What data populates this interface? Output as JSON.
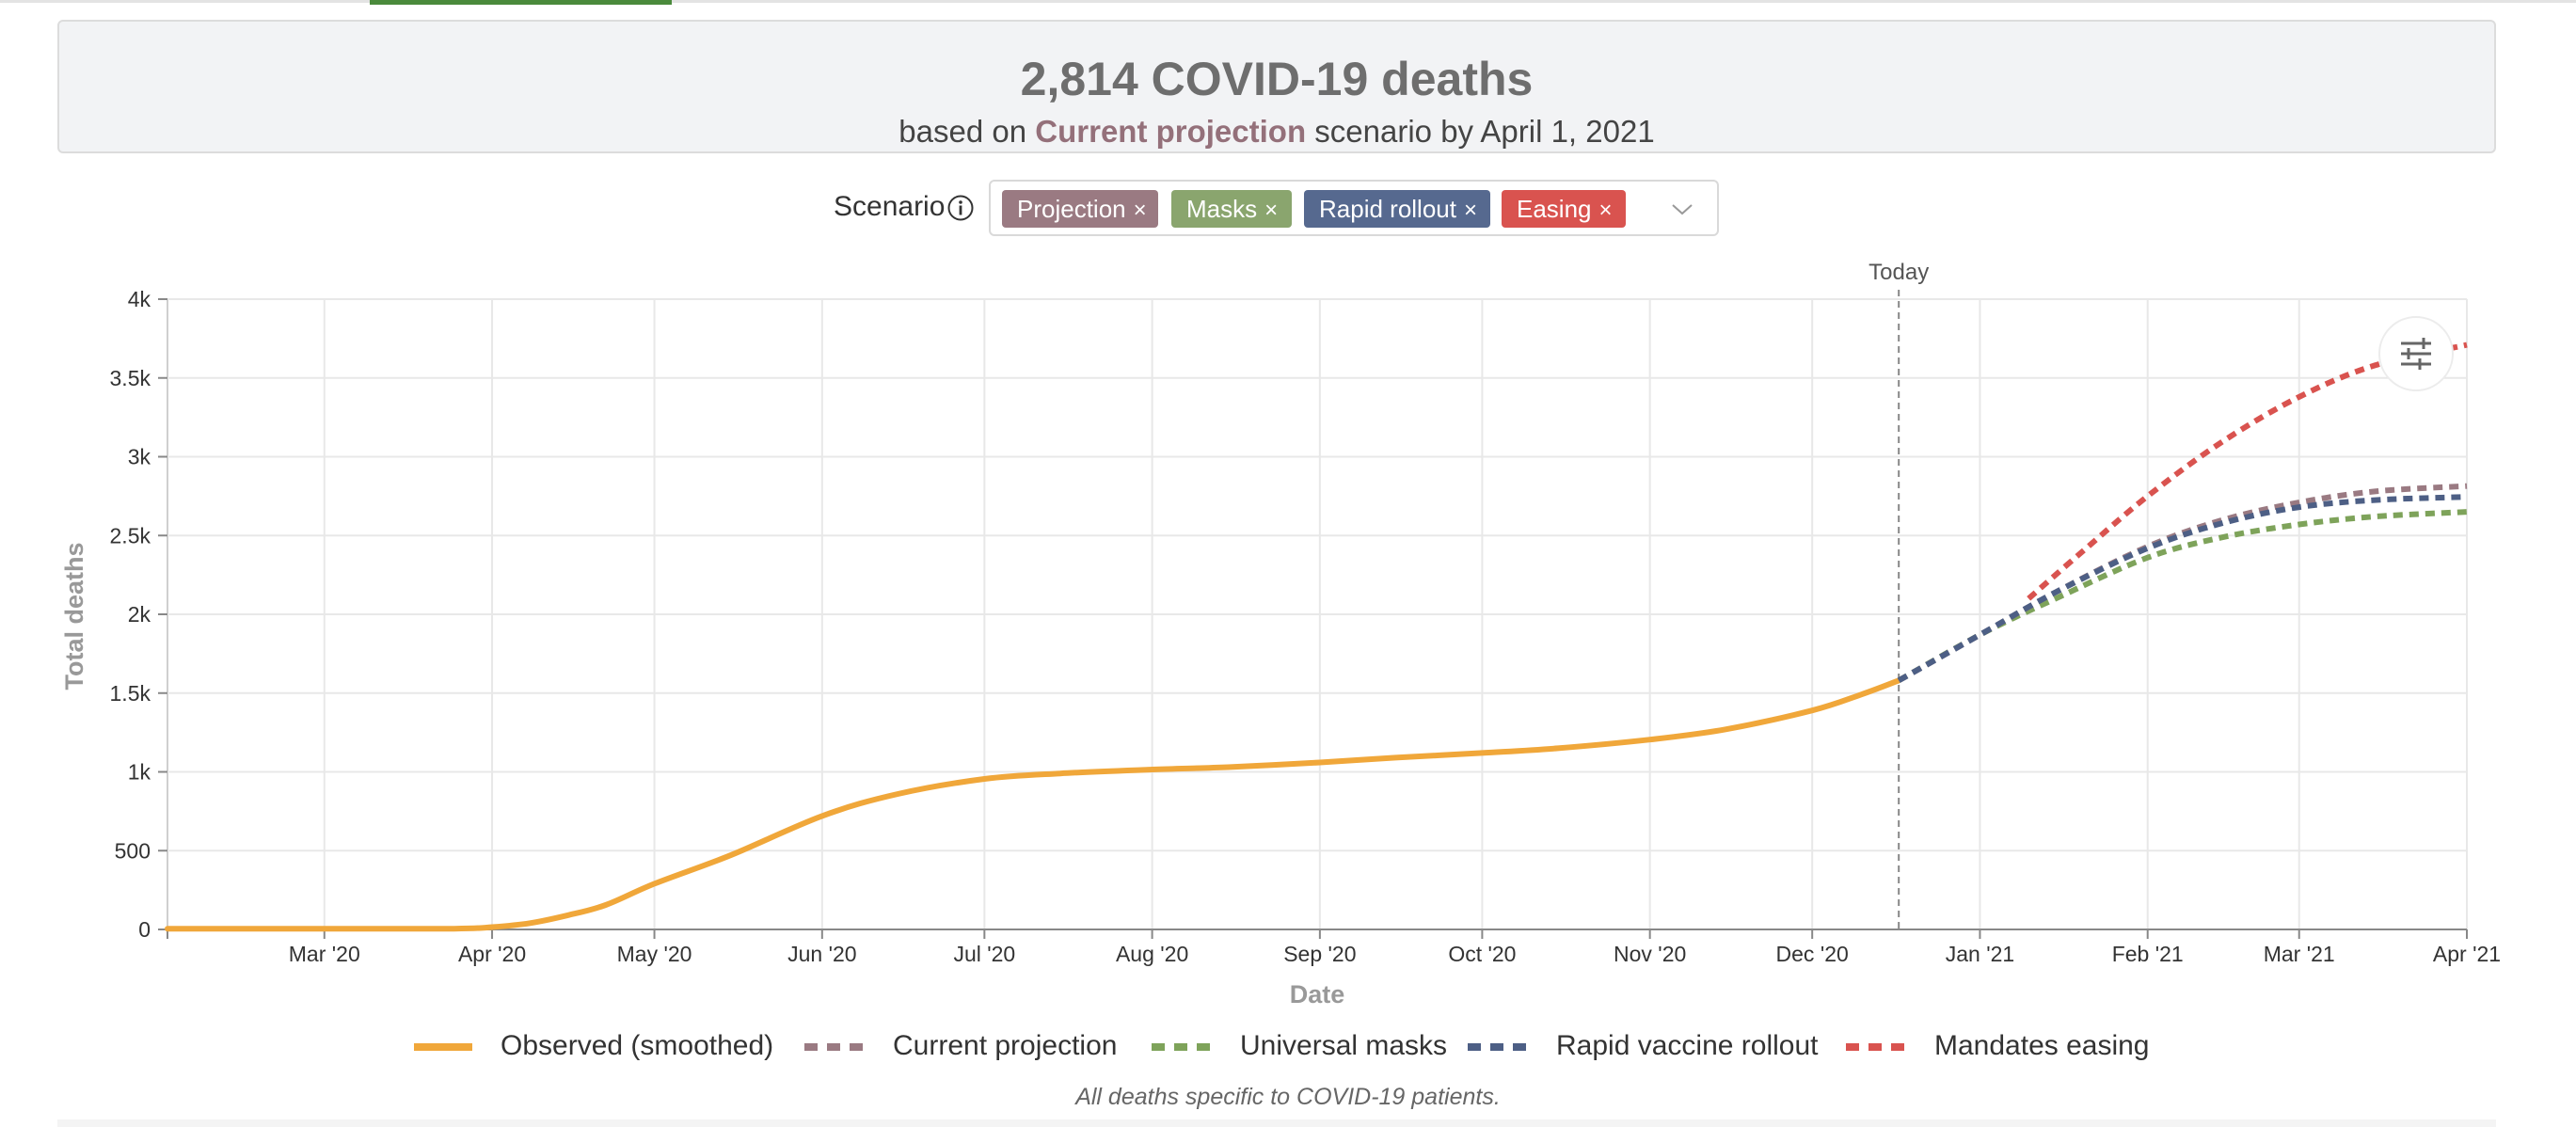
{
  "summary": {
    "headline": "2,814 COVID-19 deaths",
    "sub_prefix": "based on",
    "scenario_name": "Current projection",
    "sub_suffix": "scenario by April 1, 2021"
  },
  "scenario_selector": {
    "label": "Scenario",
    "tags": [
      {
        "label": "Projection",
        "color": "#9a7a82"
      },
      {
        "label": "Masks",
        "color": "#8aa56e"
      },
      {
        "label": "Rapid rollout",
        "color": "#56698f"
      },
      {
        "label": "Easing",
        "color": "#d9534f"
      }
    ],
    "remove_glyph": "×"
  },
  "chart_data": {
    "type": "line",
    "xlabel": "Date",
    "ylabel": "Total deaths",
    "x_start": "2020-02-01",
    "x_end": "2021-04-01",
    "ylim": [
      0,
      4000
    ],
    "yticks": [
      {
        "value": 0,
        "label": "0"
      },
      {
        "value": 500,
        "label": "500"
      },
      {
        "value": 1000,
        "label": "1k"
      },
      {
        "value": 1500,
        "label": "1.5k"
      },
      {
        "value": 2000,
        "label": "2k"
      },
      {
        "value": 2500,
        "label": "2.5k"
      },
      {
        "value": 3000,
        "label": "3k"
      },
      {
        "value": 3500,
        "label": "3.5k"
      },
      {
        "value": 4000,
        "label": "4k"
      }
    ],
    "xticks": [
      {
        "date": "2020-03-01",
        "label": "Mar '20"
      },
      {
        "date": "2020-04-01",
        "label": "Apr '20"
      },
      {
        "date": "2020-05-01",
        "label": "May '20"
      },
      {
        "date": "2020-06-01",
        "label": "Jun '20"
      },
      {
        "date": "2020-07-01",
        "label": "Jul '20"
      },
      {
        "date": "2020-08-01",
        "label": "Aug '20"
      },
      {
        "date": "2020-09-01",
        "label": "Sep '20"
      },
      {
        "date": "2020-10-01",
        "label": "Oct '20"
      },
      {
        "date": "2020-11-01",
        "label": "Nov '20"
      },
      {
        "date": "2020-12-01",
        "label": "Dec '20"
      },
      {
        "date": "2021-01-01",
        "label": "Jan '21"
      },
      {
        "date": "2021-02-01",
        "label": "Feb '21"
      },
      {
        "date": "2021-03-01",
        "label": "Mar '21"
      },
      {
        "date": "2021-04-01",
        "label": "Apr '21"
      }
    ],
    "grid": true,
    "today": {
      "date": "2020-12-17",
      "label": "Today"
    },
    "legend_position": "bottom",
    "series": [
      {
        "name": "Observed (smoothed)",
        "color": "#f0a73a",
        "dash": false,
        "points": [
          [
            "2020-02-01",
            5
          ],
          [
            "2020-03-01",
            5
          ],
          [
            "2020-03-25",
            5
          ],
          [
            "2020-04-01",
            15
          ],
          [
            "2020-04-08",
            40
          ],
          [
            "2020-04-15",
            90
          ],
          [
            "2020-04-22",
            155
          ],
          [
            "2020-05-01",
            290
          ],
          [
            "2020-05-15",
            470
          ],
          [
            "2020-06-01",
            720
          ],
          [
            "2020-06-15",
            860
          ],
          [
            "2020-07-01",
            955
          ],
          [
            "2020-07-15",
            990
          ],
          [
            "2020-08-01",
            1015
          ],
          [
            "2020-08-15",
            1030
          ],
          [
            "2020-09-01",
            1060
          ],
          [
            "2020-09-15",
            1090
          ],
          [
            "2020-10-01",
            1120
          ],
          [
            "2020-10-15",
            1150
          ],
          [
            "2020-11-01",
            1205
          ],
          [
            "2020-11-15",
            1270
          ],
          [
            "2020-12-01",
            1390
          ],
          [
            "2020-12-10",
            1490
          ],
          [
            "2020-12-17",
            1580
          ]
        ]
      },
      {
        "name": "Current projection",
        "color": "#9a7a82",
        "dash": true,
        "points": [
          [
            "2020-12-17",
            1580
          ],
          [
            "2021-01-01",
            1870
          ],
          [
            "2021-01-15",
            2140
          ],
          [
            "2021-02-01",
            2430
          ],
          [
            "2021-02-15",
            2600
          ],
          [
            "2021-03-01",
            2710
          ],
          [
            "2021-03-15",
            2780
          ],
          [
            "2021-04-01",
            2814
          ]
        ]
      },
      {
        "name": "Universal masks",
        "color": "#7ea35a",
        "dash": true,
        "points": [
          [
            "2020-12-17",
            1580
          ],
          [
            "2021-01-01",
            1870
          ],
          [
            "2021-01-15",
            2100
          ],
          [
            "2021-02-01",
            2360
          ],
          [
            "2021-02-15",
            2490
          ],
          [
            "2021-03-01",
            2570
          ],
          [
            "2021-03-15",
            2620
          ],
          [
            "2021-04-01",
            2650
          ]
        ]
      },
      {
        "name": "Rapid vaccine rollout",
        "color": "#4d5f85",
        "dash": true,
        "points": [
          [
            "2020-12-17",
            1580
          ],
          [
            "2021-01-01",
            1870
          ],
          [
            "2021-01-15",
            2140
          ],
          [
            "2021-02-01",
            2420
          ],
          [
            "2021-02-15",
            2580
          ],
          [
            "2021-03-01",
            2680
          ],
          [
            "2021-03-15",
            2725
          ],
          [
            "2021-04-01",
            2745
          ]
        ]
      },
      {
        "name": "Mandates easing",
        "color": "#d9534f",
        "dash": true,
        "points": [
          [
            "2021-01-10",
            2100
          ],
          [
            "2021-01-20",
            2400
          ],
          [
            "2021-02-01",
            2750
          ],
          [
            "2021-02-15",
            3100
          ],
          [
            "2021-03-01",
            3380
          ],
          [
            "2021-03-15",
            3580
          ],
          [
            "2021-04-01",
            3710
          ]
        ]
      }
    ]
  },
  "footnote": "All deaths specific to COVID-19 patients.",
  "icons": {
    "info": "info-circle-icon",
    "dropdown": "chevron-down-icon",
    "settings": "sliders-icon"
  }
}
